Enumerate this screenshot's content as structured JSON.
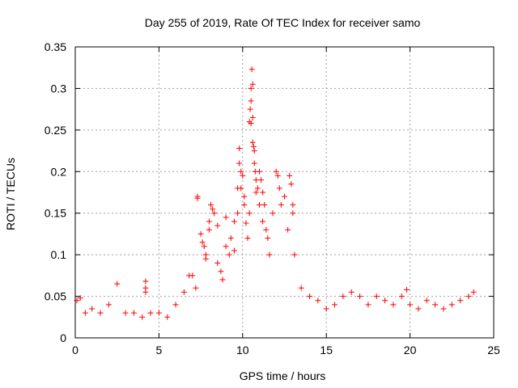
{
  "chart_data": {
    "type": "scatter",
    "title": "Day 255 of 2019, Rate Of TEC Index for receiver samo",
    "xlabel": "GPS time / hours",
    "ylabel": "ROTI / TECUs",
    "xlim": [
      0,
      25
    ],
    "ylim": [
      0,
      0.35
    ],
    "x_ticks": [
      0,
      5,
      10,
      15,
      20,
      25
    ],
    "x_tick_labels": [
      "0",
      "5",
      "10",
      "15",
      "20",
      "25"
    ],
    "y_ticks": [
      0,
      0.05,
      0.1,
      0.15,
      0.2,
      0.25,
      0.3,
      0.35
    ],
    "y_tick_labels": [
      "0",
      "0.05",
      "0.1",
      "0.15",
      "0.2",
      "0.25",
      "0.3",
      "0.35"
    ],
    "grid": true,
    "marker": "plus",
    "marker_color": "#ff0000",
    "series": [
      {
        "values": [
          [
            0.1,
            0.045
          ],
          [
            0.3,
            0.048
          ],
          [
            0.6,
            0.03
          ],
          [
            1.0,
            0.035
          ],
          [
            1.5,
            0.03
          ],
          [
            2.0,
            0.04
          ],
          [
            2.5,
            0.065
          ],
          [
            3.0,
            0.03
          ],
          [
            3.5,
            0.03
          ],
          [
            4.0,
            0.025
          ],
          [
            4.2,
            0.068
          ],
          [
            4.2,
            0.06
          ],
          [
            4.2,
            0.055
          ],
          [
            4.5,
            0.03
          ],
          [
            5.0,
            0.03
          ],
          [
            5.5,
            0.025
          ],
          [
            6.0,
            0.04
          ],
          [
            6.5,
            0.055
          ],
          [
            6.8,
            0.075
          ],
          [
            7.0,
            0.075
          ],
          [
            7.2,
            0.06
          ],
          [
            7.3,
            0.17
          ],
          [
            7.3,
            0.168
          ],
          [
            7.5,
            0.125
          ],
          [
            7.6,
            0.115
          ],
          [
            7.7,
            0.11
          ],
          [
            7.8,
            0.1
          ],
          [
            7.8,
            0.095
          ],
          [
            8.0,
            0.14
          ],
          [
            8.0,
            0.13
          ],
          [
            8.1,
            0.16
          ],
          [
            8.2,
            0.155
          ],
          [
            8.3,
            0.15
          ],
          [
            8.5,
            0.135
          ],
          [
            8.5,
            0.09
          ],
          [
            8.7,
            0.08
          ],
          [
            8.8,
            0.07
          ],
          [
            9.0,
            0.145
          ],
          [
            9.0,
            0.11
          ],
          [
            9.2,
            0.1
          ],
          [
            9.3,
            0.12
          ],
          [
            9.5,
            0.14
          ],
          [
            9.5,
            0.105
          ],
          [
            9.7,
            0.18
          ],
          [
            9.7,
            0.15
          ],
          [
            9.8,
            0.228
          ],
          [
            9.8,
            0.21
          ],
          [
            9.9,
            0.2
          ],
          [
            9.9,
            0.18
          ],
          [
            10.0,
            0.195
          ],
          [
            10.1,
            0.17
          ],
          [
            10.1,
            0.16
          ],
          [
            10.2,
            0.138
          ],
          [
            10.3,
            0.12
          ],
          [
            10.4,
            0.15
          ],
          [
            10.4,
            0.26
          ],
          [
            10.45,
            0.275
          ],
          [
            10.5,
            0.3
          ],
          [
            10.5,
            0.285
          ],
          [
            10.5,
            0.258
          ],
          [
            10.55,
            0.323
          ],
          [
            10.6,
            0.305
          ],
          [
            10.6,
            0.265
          ],
          [
            10.6,
            0.235
          ],
          [
            10.65,
            0.23
          ],
          [
            10.7,
            0.225
          ],
          [
            10.7,
            0.21
          ],
          [
            10.75,
            0.2
          ],
          [
            10.8,
            0.19
          ],
          [
            10.8,
            0.175
          ],
          [
            10.9,
            0.18
          ],
          [
            11.0,
            0.2
          ],
          [
            11.0,
            0.16
          ],
          [
            11.1,
            0.19
          ],
          [
            11.2,
            0.175
          ],
          [
            11.2,
            0.14
          ],
          [
            11.3,
            0.16
          ],
          [
            11.4,
            0.13
          ],
          [
            11.5,
            0.12
          ],
          [
            11.6,
            0.1
          ],
          [
            11.8,
            0.15
          ],
          [
            12.0,
            0.2
          ],
          [
            12.1,
            0.195
          ],
          [
            12.2,
            0.18
          ],
          [
            12.3,
            0.16
          ],
          [
            12.5,
            0.17
          ],
          [
            12.7,
            0.13
          ],
          [
            12.8,
            0.195
          ],
          [
            12.9,
            0.185
          ],
          [
            13.0,
            0.16
          ],
          [
            13.0,
            0.15
          ],
          [
            13.1,
            0.1
          ],
          [
            13.5,
            0.06
          ],
          [
            14.0,
            0.05
          ],
          [
            14.5,
            0.045
          ],
          [
            15.0,
            0.035
          ],
          [
            15.5,
            0.04
          ],
          [
            16.0,
            0.05
          ],
          [
            16.5,
            0.055
          ],
          [
            17.0,
            0.05
          ],
          [
            17.5,
            0.04
          ],
          [
            18.0,
            0.05
          ],
          [
            18.5,
            0.045
          ],
          [
            19.0,
            0.04
          ],
          [
            19.5,
            0.05
          ],
          [
            19.8,
            0.058
          ],
          [
            20.0,
            0.04
          ],
          [
            20.5,
            0.035
          ],
          [
            21.0,
            0.045
          ],
          [
            21.5,
            0.04
          ],
          [
            22.0,
            0.035
          ],
          [
            22.5,
            0.04
          ],
          [
            23.0,
            0.045
          ],
          [
            23.5,
            0.05
          ],
          [
            23.8,
            0.055
          ]
        ]
      }
    ]
  }
}
